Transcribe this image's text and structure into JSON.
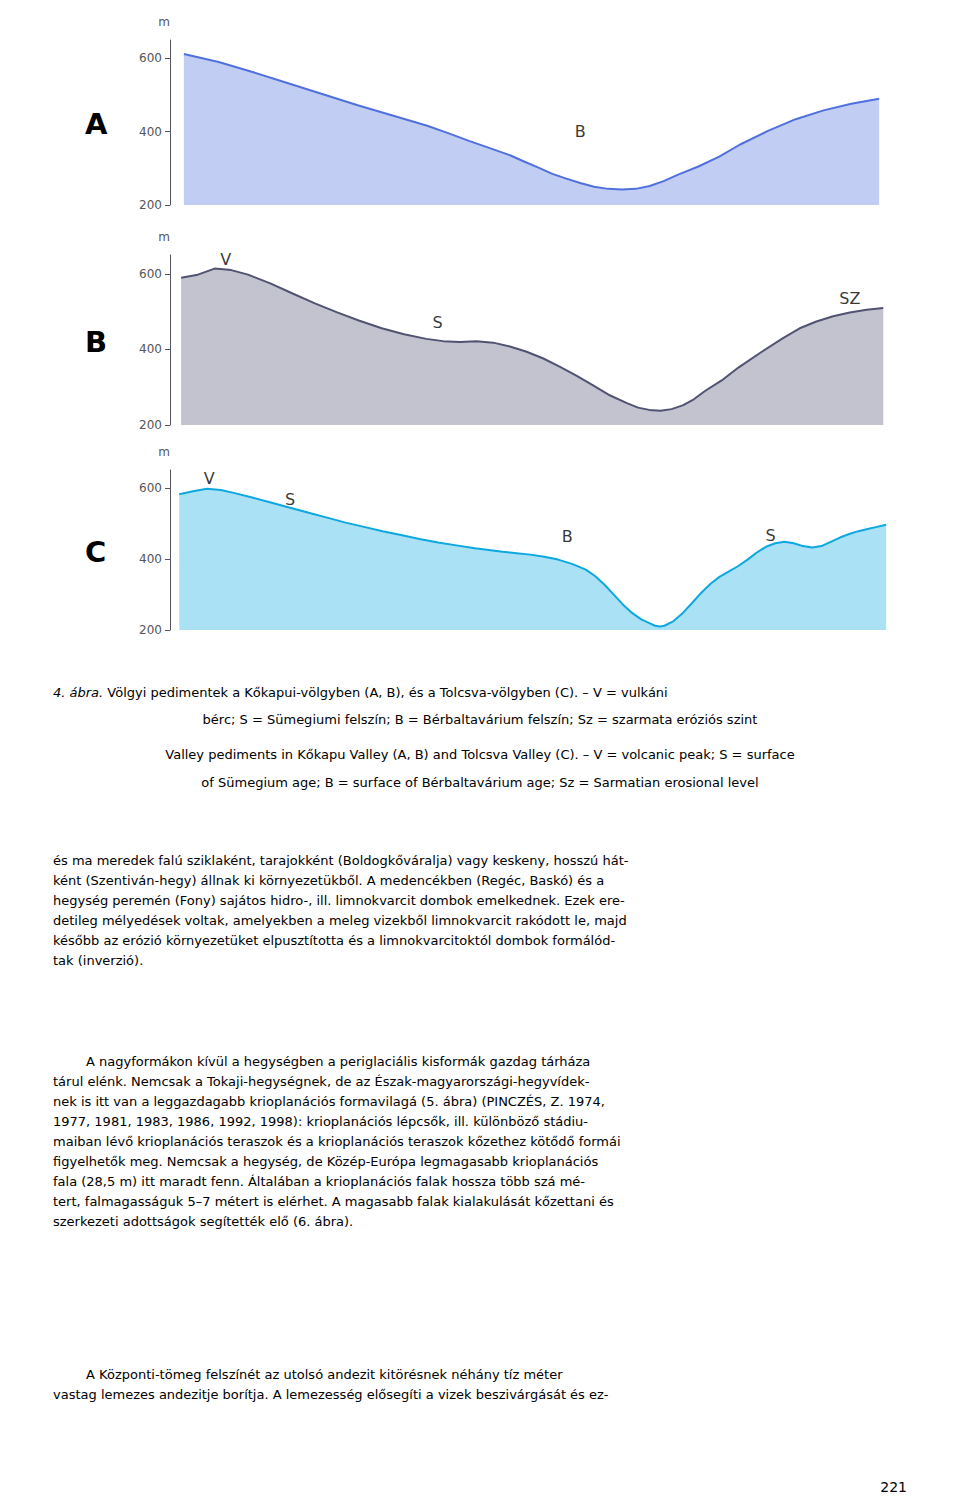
{
  "chart_data": [
    {
      "type": "area",
      "title": "A",
      "ylabel": "m",
      "grid": false,
      "tick_labels": "y",
      "marker": "none",
      "x": [
        0.3,
        0.35,
        0.4,
        0.45,
        0.5,
        0.55,
        0.6,
        0.65,
        0.68,
        0.71,
        0.74,
        0.77,
        0.79,
        0.81,
        0.83,
        0.85,
        0.87,
        0.89,
        0.91,
        0.93,
        0.95,
        0.97,
        0.99,
        1.01,
        1.04,
        1.07,
        1.1,
        1.14,
        1.18,
        1.22,
        1.26,
        1.3
      ],
      "values": [
        612,
        590,
        562,
        532,
        502,
        472,
        444,
        416,
        396,
        375,
        355,
        335,
        318,
        302,
        285,
        272,
        260,
        250,
        244,
        242,
        244,
        252,
        265,
        282,
        305,
        332,
        365,
        402,
        434,
        458,
        476,
        490
      ],
      "xlim": [
        0.28,
        1.33
      ],
      "ylim": [
        200,
        650
      ],
      "yticks": [
        200,
        400,
        600
      ],
      "annotations": [
        {
          "text": "B",
          "x": 0.87,
          "y": 400
        }
      ]
    },
    {
      "type": "area",
      "title": "B",
      "ylabel": "m",
      "grid": false,
      "tick_labels": "y",
      "marker": "none",
      "x": [
        0.18,
        0.21,
        0.24,
        0.27,
        0.3,
        0.34,
        0.38,
        0.42,
        0.46,
        0.5,
        0.54,
        0.58,
        0.62,
        0.65,
        0.68,
        0.71,
        0.74,
        0.77,
        0.8,
        0.83,
        0.86,
        0.89,
        0.92,
        0.95,
        0.98,
        1.0,
        1.02,
        1.04,
        1.06,
        1.08,
        1.1,
        1.12,
        1.15,
        1.18,
        1.22,
        1.26,
        1.29,
        1.32,
        1.35,
        1.38,
        1.41,
        1.44
      ],
      "values": [
        590,
        598,
        614,
        610,
        598,
        575,
        548,
        522,
        498,
        476,
        456,
        440,
        428,
        422,
        420,
        422,
        418,
        408,
        394,
        376,
        354,
        330,
        304,
        278,
        258,
        246,
        240,
        238,
        242,
        252,
        268,
        290,
        318,
        352,
        392,
        430,
        456,
        474,
        488,
        498,
        505,
        510
      ],
      "xlim": [
        0.16,
        1.47
      ],
      "ylim": [
        200,
        650
      ],
      "yticks": [
        200,
        400,
        600
      ],
      "annotations": [
        {
          "text": "V",
          "x": 0.26,
          "y": 638
        },
        {
          "text": "S",
          "x": 0.64,
          "y": 472
        },
        {
          "text": "SZ",
          "x": 1.38,
          "y": 535
        }
      ]
    },
    {
      "type": "area",
      "title": "C",
      "ylabel": "m",
      "grid": false,
      "tick_labels": "y",
      "marker": "none",
      "x": [
        0.22,
        0.25,
        0.28,
        0.31,
        0.34,
        0.38,
        0.42,
        0.46,
        0.5,
        0.54,
        0.58,
        0.62,
        0.66,
        0.7,
        0.74,
        0.78,
        0.82,
        0.86,
        0.89,
        0.92,
        0.95,
        0.98,
        1.01,
        1.04,
        1.07,
        1.1,
        1.12,
        1.14,
        1.16,
        1.18,
        1.2,
        1.22,
        1.24,
        1.25,
        1.26,
        1.27,
        1.29,
        1.31,
        1.33,
        1.35,
        1.37,
        1.39,
        1.41,
        1.43,
        1.45,
        1.47,
        1.49,
        1.51,
        1.53,
        1.55,
        1.57,
        1.59,
        1.61,
        1.63,
        1.65,
        1.67,
        1.69,
        1.71,
        1.73,
        1.75
      ],
      "values": [
        582,
        590,
        597,
        594,
        585,
        572,
        558,
        544,
        530,
        516,
        502,
        490,
        478,
        467,
        456,
        446,
        438,
        430,
        425,
        420,
        416,
        412,
        406,
        398,
        386,
        370,
        352,
        328,
        300,
        272,
        248,
        230,
        218,
        212,
        210,
        212,
        225,
        248,
        276,
        305,
        330,
        350,
        365,
        380,
        398,
        418,
        434,
        444,
        448,
        444,
        436,
        432,
        436,
        448,
        460,
        470,
        478,
        484,
        490,
        496
      ],
      "xlim": [
        0.2,
        1.78
      ],
      "ylim": [
        200,
        650
      ],
      "yticks": [
        200,
        400,
        600
      ],
      "annotations": [
        {
          "text": "V",
          "x": 0.285,
          "y": 625
        },
        {
          "text": "S",
          "x": 0.46,
          "y": 568
        },
        {
          "text": "B",
          "x": 1.06,
          "y": 462
        },
        {
          "text": "S",
          "x": 1.5,
          "y": 465
        }
      ]
    }
  ],
  "caption": [
    "4. ábra.",
    " Völgyi pedimentek a Kőkapui-völgyben (A, B), és a Tolcsva-völgyben (C). – V = vulkáni",
    "bérc; S = Sümegiumi felszín; B = Bérbaltavárium felszín; Sz = szarmata eróziós szint",
    "Valley pediments in Kőkapu Valley (A, B) and Tolcsva Valley (C). – V = volcanic peak; S = surface",
    "of Sümegium age; B = surface of Bérbaltavárium age; Sz = Sarmatian erosional level"
  ],
  "body": [
    "és ma meredek falú sziklaként, tarajokként (Boldogkőváralja) vagy keskeny, hosszú hát-\nként (Szentiván-hegy) állnak ki környezetükből. A medencékben (Regéc, Baskó) és a\nhegység peremén (Fony) sajátos hidro-, ill. limnokvarcit dombok emelkednek. Ezek ere-\ndetileg mélyedések voltak, amelyekben a meleg vizekből limnokvarcit rakódott le, majd\nkésőbb az erózió környezetüket elpusztította és a limnokvarcitoktól dombok formálód-\ntak (inverzió).",
    "        A nagyformákon kívül a hegységben a periglaciális kisformák gazdag tárháza\ntárul elénk. Nemcsak a Tokaji-hegységnek, de az Észak-magyarországi-hegyvídek-\nnek is itt van a leggazdagabb krioplanációs formavilagá (5. ábra) (PINCZÉS, Z. 1974,\n1977, 1981, 1983, 1986, 1992, 1998): krioplanációs lépcsők, ill. különböző stádiu-\nmaiban lévő krioplanációs teraszok és a krioplanációs teraszok kőzethez kötődő formái\nfigyelhetők meg. Nemcsak a hegység, de Közép-Európa legmagasabb krioplanációs\nfala (28,5 m) itt maradt fenn. Általában a krioplanációs falak hossza több szá mé-\ntert, falmagasságuk 5–7 métert is elérhet. A magasabb falak kialakulását kőzettani és\nszerkezeti adottságok segítették elő (6. ábra).",
    "        A Központi-tömeg felszínét az utolsó andezit kitörésnek néhány tíz méter\nvastag lemezes andezitje borítja. A lemezesség elősegíti a vizek beszivárgását és ez-"
  ],
  "page_number": "221"
}
